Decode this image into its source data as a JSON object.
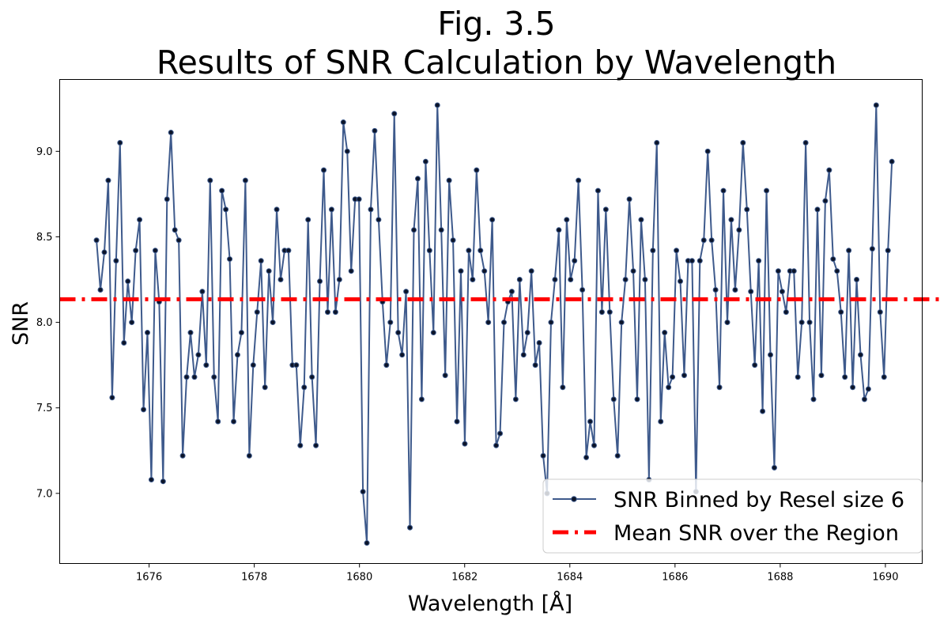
{
  "chart_data": {
    "type": "line",
    "title": "Fig. 3.5",
    "subtitle": "Results of SNR Calculation by Wavelength",
    "xlabel": "Wavelength [Å]",
    "ylabel": "SNR",
    "xlim": [
      1674.3,
      1690.7
    ],
    "ylim": [
      6.59,
      9.42
    ],
    "xticks": [
      1676,
      1678,
      1680,
      1682,
      1684,
      1686,
      1688,
      1690
    ],
    "xtick_labels": [
      "1676",
      "1678",
      "1680",
      "1682",
      "1684",
      "1686",
      "1688",
      "1690"
    ],
    "yticks": [
      7.0,
      7.5,
      8.0,
      8.5,
      9.0
    ],
    "ytick_labels": [
      "7.0",
      "7.5",
      "8.0",
      "8.5",
      "9.0"
    ],
    "grid": false,
    "legend_position": "lower-right",
    "colors": {
      "series": "#3e5a8c",
      "marker_face": "#0b1429",
      "mean_line": "#ff0000"
    },
    "series": [
      {
        "name": "SNR Binned by Resel size 6",
        "style": "line-with-dot-markers",
        "x_start": 1675.0,
        "x_step": 0.0745,
        "values": [
          8.48,
          8.19,
          8.41,
          8.83,
          7.56,
          8.36,
          9.05,
          7.88,
          8.24,
          8.0,
          8.42,
          8.6,
          7.49,
          7.94,
          7.08,
          8.42,
          8.12,
          7.07,
          8.72,
          9.11,
          8.54,
          8.48,
          7.22,
          7.68,
          7.94,
          7.68,
          7.81,
          8.18,
          7.75,
          8.83,
          7.68,
          7.42,
          8.77,
          8.66,
          8.37,
          7.42,
          7.81,
          7.94,
          8.83,
          7.22,
          7.75,
          8.06,
          8.36,
          7.62,
          8.3,
          8.0,
          8.66,
          8.25,
          8.42,
          8.42,
          7.75,
          7.75,
          7.28,
          7.62,
          8.6,
          7.68,
          7.28,
          8.24,
          8.89,
          8.06,
          8.66,
          8.06,
          8.25,
          9.17,
          9.0,
          8.3,
          8.72,
          8.72,
          7.01,
          6.71,
          8.66,
          9.12,
          8.6,
          8.12,
          7.75,
          8.0,
          9.22,
          7.94,
          7.81,
          8.18,
          6.8,
          8.54,
          8.84,
          7.55,
          8.94,
          8.42,
          7.94,
          9.27,
          8.54,
          7.69,
          8.83,
          8.48,
          7.42,
          8.3,
          7.29,
          8.42,
          8.25,
          8.89,
          8.42,
          8.3,
          8.0,
          8.6,
          7.28,
          7.35,
          8.0,
          8.12,
          8.18,
          7.55,
          8.25,
          7.81,
          7.94,
          8.3,
          7.75,
          7.88,
          7.22,
          7.0,
          8.0,
          8.25,
          8.54,
          7.62,
          8.6,
          8.25,
          8.36,
          8.83,
          8.19,
          7.21,
          7.42,
          7.28,
          8.77,
          8.06,
          8.66,
          8.06,
          7.55,
          7.22,
          8.0,
          8.25,
          8.72,
          8.3,
          7.55,
          8.6,
          8.25,
          7.08,
          8.42,
          9.05,
          7.42,
          7.94,
          7.62,
          7.68,
          8.42,
          8.24,
          7.69,
          8.36,
          8.36,
          7.01,
          8.36,
          8.48,
          9.0,
          8.48,
          8.19,
          7.62,
          8.77,
          8.0,
          8.6,
          8.19,
          8.54,
          9.05,
          8.66,
          8.18,
          7.75,
          8.36,
          7.48,
          8.77,
          7.81,
          7.15,
          8.3,
          8.18,
          8.06,
          8.3,
          8.3,
          7.68,
          8.0,
          9.05,
          8.0,
          7.55,
          8.66,
          7.69,
          8.71,
          8.89,
          8.37,
          8.3,
          8.06,
          7.68,
          8.42,
          7.62,
          8.25,
          7.81,
          7.55,
          7.61,
          8.43,
          9.27,
          8.06,
          7.68,
          8.42,
          8.94
        ]
      },
      {
        "name": "Mean SNR over the Region",
        "style": "dash-dot",
        "values": [
          8.135
        ]
      }
    ]
  }
}
